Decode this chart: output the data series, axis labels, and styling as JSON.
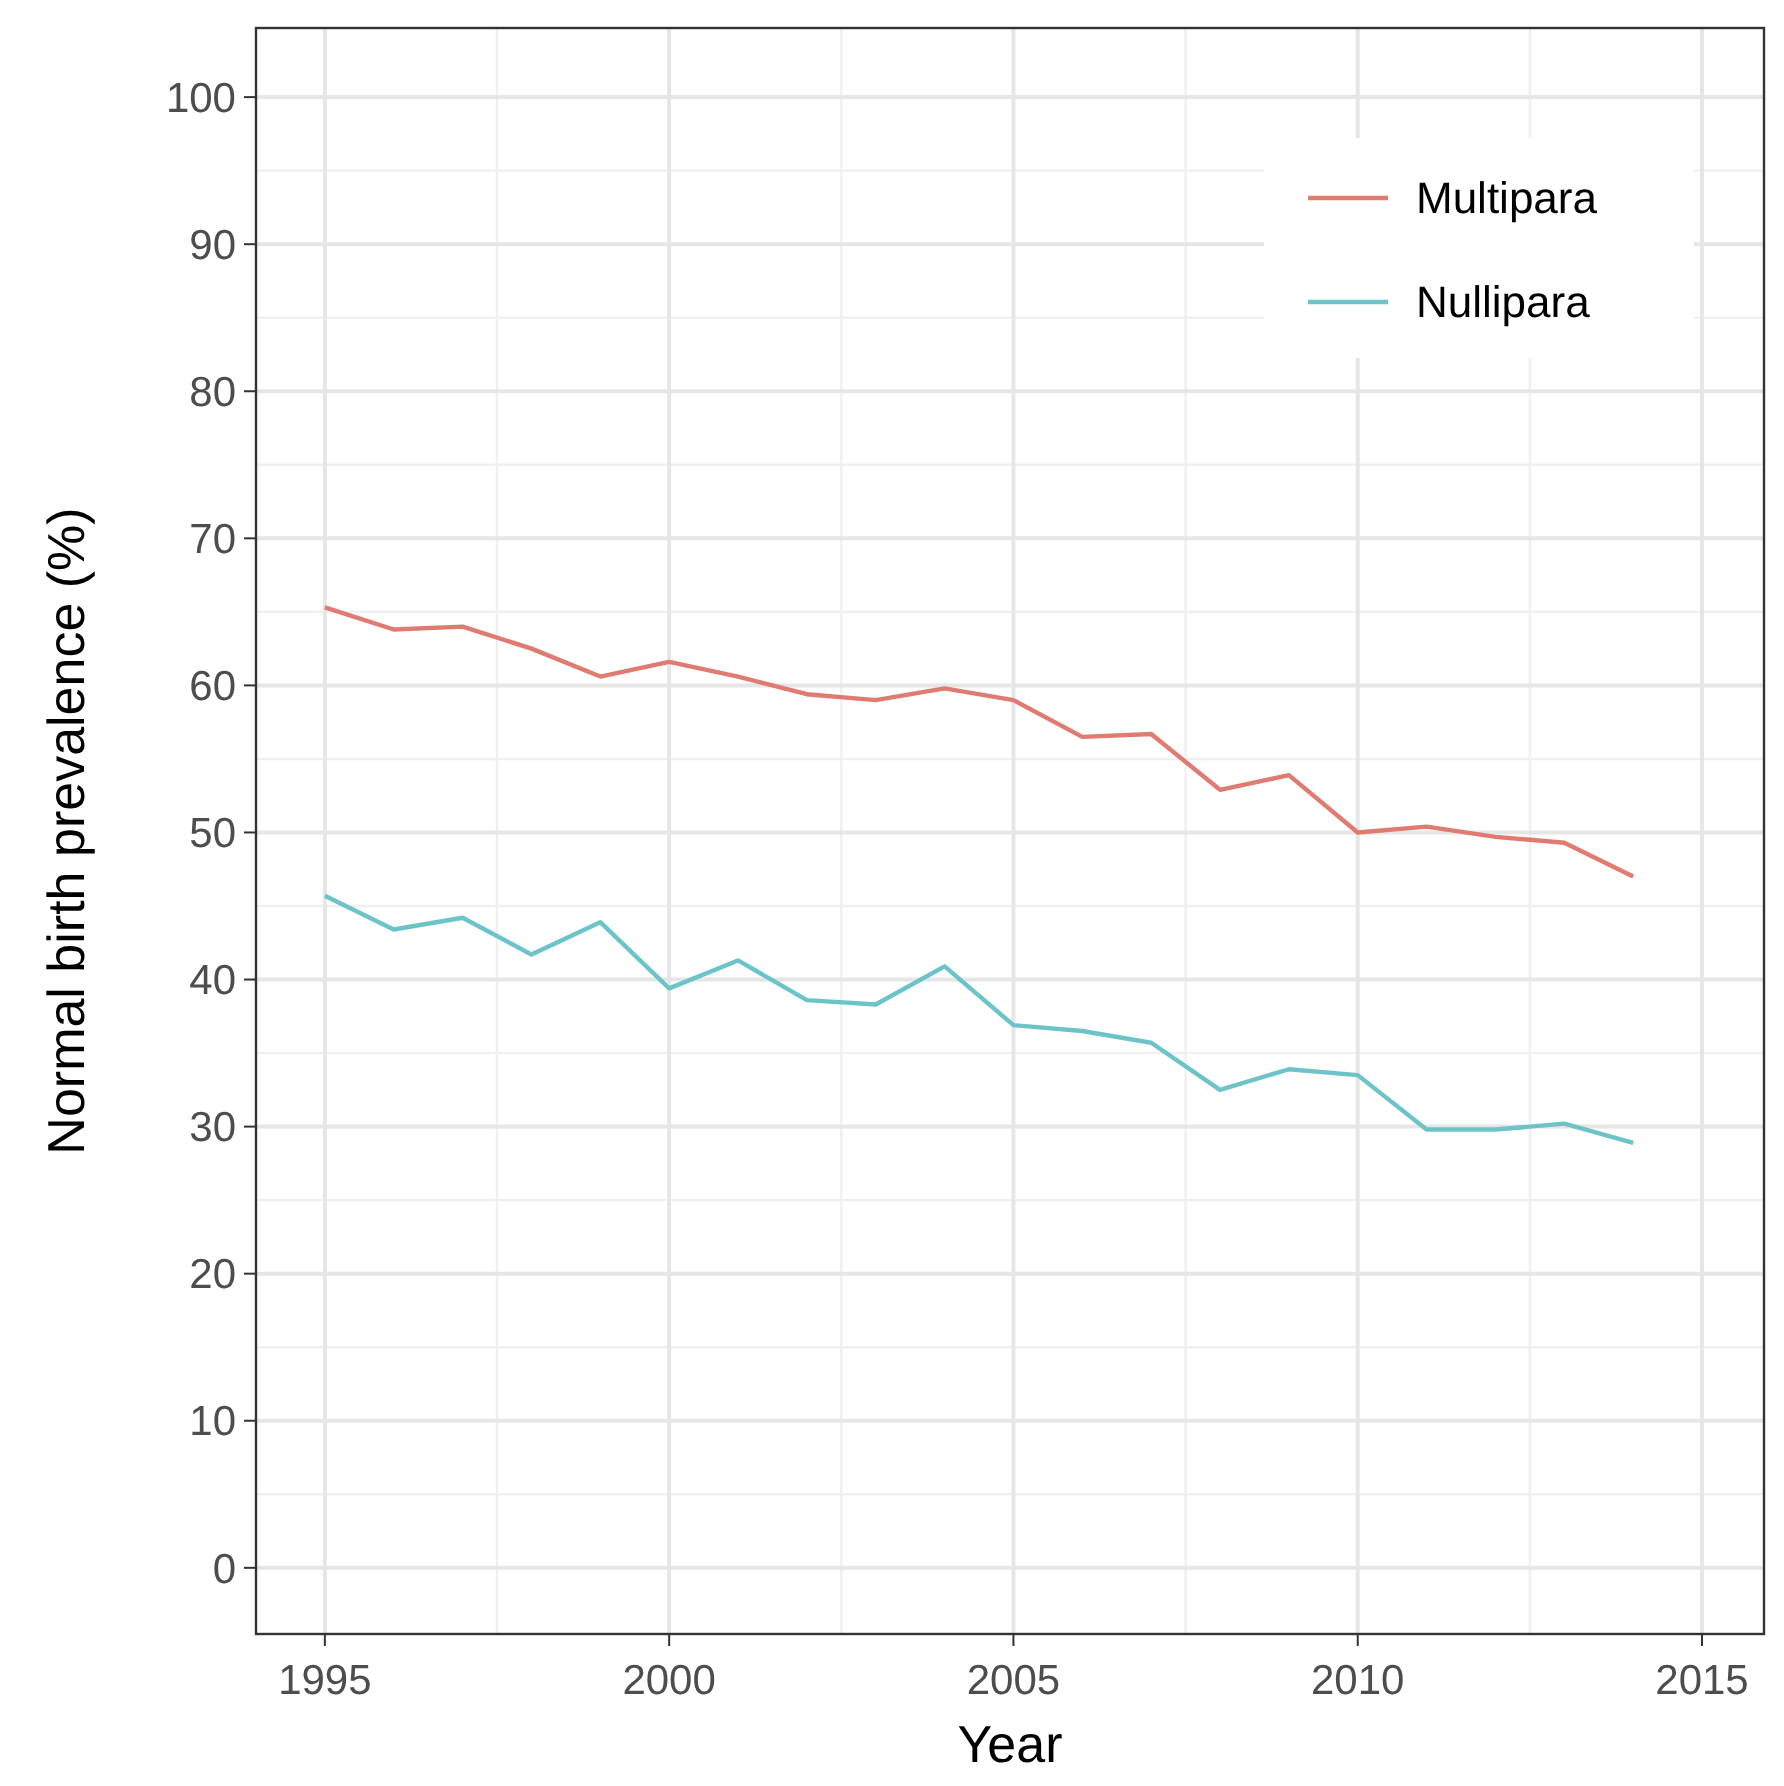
{
  "chart_data": {
    "type": "line",
    "xlabel": "Year",
    "ylabel": "Normal birth prevalence (%)",
    "x": [
      1995,
      1996,
      1997,
      1998,
      1999,
      2000,
      2001,
      2002,
      2003,
      2004,
      2005,
      2006,
      2007,
      2008,
      2009,
      2010,
      2011,
      2012,
      2013,
      2014
    ],
    "series": [
      {
        "name": "Multipara",
        "color": "#e07b72",
        "values": [
          65.3,
          63.8,
          64.0,
          62.5,
          60.6,
          61.6,
          60.6,
          59.4,
          59.0,
          59.8,
          59.0,
          56.5,
          56.7,
          52.9,
          53.9,
          50.0,
          50.4,
          49.7,
          49.3,
          47.0
        ]
      },
      {
        "name": "Nullipara",
        "color": "#6cc4c8",
        "values": [
          45.7,
          43.4,
          44.2,
          41.7,
          43.9,
          39.4,
          41.3,
          38.6,
          38.3,
          40.9,
          36.9,
          36.5,
          35.7,
          32.5,
          33.9,
          33.5,
          29.8,
          29.8,
          30.2,
          28.9
        ]
      }
    ],
    "xlim": [
      1994,
      2015.9
    ],
    "xticks": [
      1995,
      2000,
      2005,
      2010,
      2015
    ],
    "ylim": [
      -4.5,
      104.7
    ],
    "yticks": [
      0,
      10,
      20,
      30,
      40,
      50,
      60,
      70,
      80,
      90,
      100
    ],
    "grid": true,
    "legend": "top right",
    "marker": "none",
    "line_style": "solid"
  }
}
